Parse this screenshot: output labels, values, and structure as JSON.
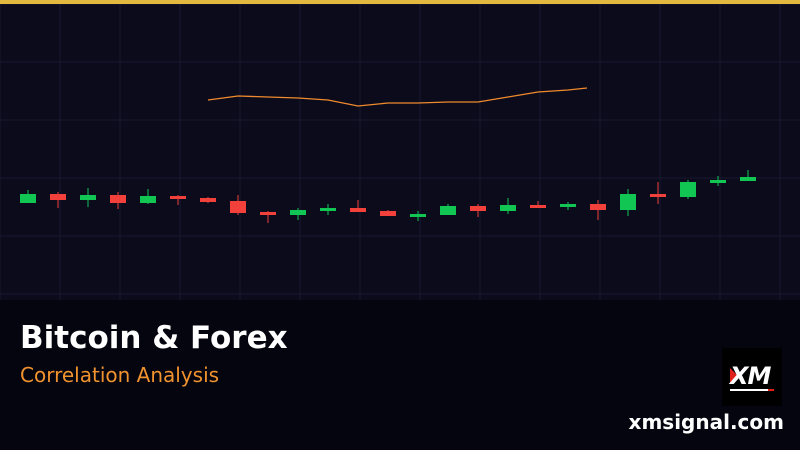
{
  "title": "Bitcoin & Forex",
  "subtitle": "Correlation Analysis",
  "website": "xmsignal.com",
  "logo_text": "XM",
  "colors": {
    "accent_bar": "#e3b83e",
    "subtitle": "#f0922e",
    "up": "#11c653",
    "down": "#f2403a",
    "line": "#f08a2c",
    "background": "#0b0b1c",
    "grid": "#1a1a30"
  },
  "chart_data": {
    "type": "candlestick",
    "grid": true,
    "candles": [
      {
        "o": 97,
        "h": 110,
        "l": 97,
        "c": 106
      },
      {
        "o": 106,
        "h": 108,
        "l": 92,
        "c": 100
      },
      {
        "o": 100,
        "h": 112,
        "l": 93,
        "c": 105
      },
      {
        "o": 105,
        "h": 108,
        "l": 91,
        "c": 97
      },
      {
        "o": 97,
        "h": 111,
        "l": 96,
        "c": 104
      },
      {
        "o": 104,
        "h": 105,
        "l": 95,
        "c": 101
      },
      {
        "o": 102,
        "h": 103,
        "l": 97,
        "c": 98
      },
      {
        "o": 99,
        "h": 105,
        "l": 85,
        "c": 87
      },
      {
        "o": 88,
        "h": 89,
        "l": 77,
        "c": 85
      },
      {
        "o": 85,
        "h": 92,
        "l": 80,
        "c": 90
      },
      {
        "o": 89,
        "h": 96,
        "l": 85,
        "c": 92
      },
      {
        "o": 92,
        "h": 100,
        "l": 88,
        "c": 88
      },
      {
        "o": 89,
        "h": 90,
        "l": 84,
        "c": 84
      },
      {
        "o": 83,
        "h": 89,
        "l": 79,
        "c": 86
      },
      {
        "o": 85,
        "h": 96,
        "l": 85,
        "c": 94
      },
      {
        "o": 94,
        "h": 96,
        "l": 83,
        "c": 89
      },
      {
        "o": 89,
        "h": 102,
        "l": 86,
        "c": 95
      },
      {
        "o": 95,
        "h": 99,
        "l": 92,
        "c": 92
      },
      {
        "o": 93,
        "h": 98,
        "l": 90,
        "c": 96
      },
      {
        "o": 96,
        "h": 100,
        "l": 80,
        "c": 90
      },
      {
        "o": 90,
        "h": 111,
        "l": 84,
        "c": 106
      },
      {
        "o": 106,
        "h": 118,
        "l": 96,
        "c": 103
      },
      {
        "o": 103,
        "h": 120,
        "l": 101,
        "c": 118
      },
      {
        "o": 117,
        "h": 124,
        "l": 114,
        "c": 120
      },
      {
        "o": 119,
        "h": 130,
        "l": 119,
        "c": 123
      }
    ],
    "line": {
      "start_index": 6,
      "values": [
        200,
        204,
        203,
        202,
        200,
        194,
        197,
        197,
        198,
        198,
        203,
        208,
        210,
        212
      ]
    }
  }
}
